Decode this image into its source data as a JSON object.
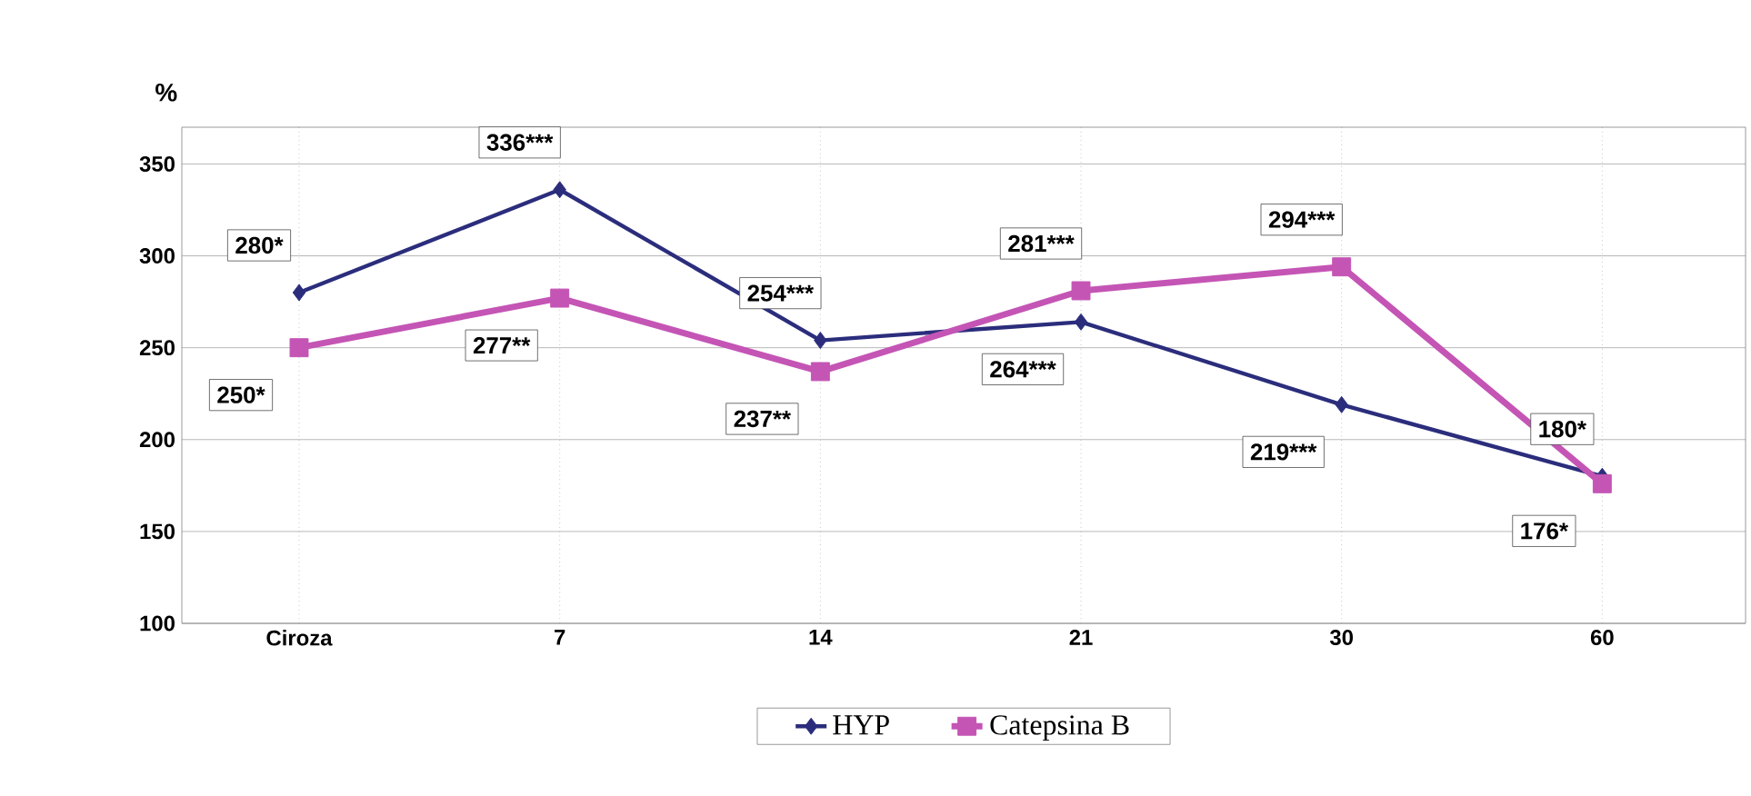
{
  "chart_data": {
    "type": "line",
    "ylabel": "%",
    "categories": [
      "Ciroza",
      "7",
      "14",
      "21",
      "30",
      "60"
    ],
    "series": [
      {
        "name": "HYP",
        "color": "#2b2d7c",
        "marker": "diamond",
        "values": [
          280,
          336,
          254,
          264,
          219,
          180
        ],
        "value_labels": [
          "280*",
          "336***",
          "254***",
          "264***",
          "219***",
          "180*"
        ]
      },
      {
        "name": "Catepsina  B",
        "color": "#c455b5",
        "marker": "square",
        "values": [
          250,
          277,
          237,
          281,
          294,
          176
        ],
        "value_labels": [
          "250*",
          "277**",
          "237**",
          "281***",
          "294***",
          "176*"
        ]
      }
    ],
    "ylim": [
      100,
      370
    ],
    "yticks": [
      100,
      150,
      200,
      250,
      300,
      350
    ],
    "grid": true,
    "legend": "bottom"
  }
}
